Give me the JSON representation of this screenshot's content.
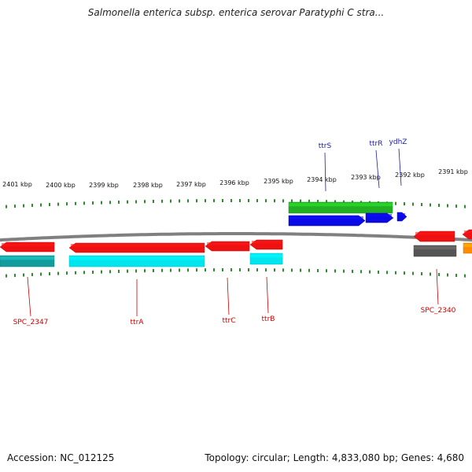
{
  "title": "Salmonella enterica subsp. enterica serovar Paratyphi C stra...",
  "accession_text": "Accession: NC_012125",
  "summary_text": "Topology: circular; Length: 4,833,080 bp; Genes: 4,680",
  "colors": {
    "backbone": "#808080",
    "tick": "#2e8b2e",
    "forward_label": "#1a1aa8",
    "reverse_label": "#cc0000",
    "red": "#ee1111",
    "cyan": "#00e5ee",
    "teal": "#139c9c",
    "blue": "#0a0ae6",
    "green": "#22b022",
    "gray": "#555555",
    "orange": "#ff8c00"
  },
  "scale": {
    "unit": "kbp",
    "labels": [
      "2401 kbp",
      "2400 kbp",
      "2399 kbp",
      "2398 kbp",
      "2397 kbp",
      "2396 kbp",
      "2395 kbp",
      "2394 kbp",
      "2393 kbp",
      "2392 kbp",
      "2391 kbp"
    ]
  },
  "genes": [
    {
      "name": "SPC_2347",
      "strand": "reverse",
      "color": "red",
      "labeled": true
    },
    {
      "name": "ttrA",
      "strand": "reverse",
      "color": "red",
      "labeled": true
    },
    {
      "name": "ttrC",
      "strand": "reverse",
      "color": "red",
      "labeled": true
    },
    {
      "name": "ttrB",
      "strand": "reverse",
      "color": "red",
      "labeled": true
    },
    {
      "name": "SPC_2340",
      "strand": "reverse",
      "color": "red",
      "labeled": true
    },
    {
      "name": "ttrS",
      "strand": "forward",
      "color": "blue",
      "labeled": true
    },
    {
      "name": "ttrR",
      "strand": "forward",
      "color": "blue",
      "labeled": true
    },
    {
      "name": "ydhZ",
      "strand": "forward",
      "color": "blue",
      "labeled": true
    }
  ],
  "features": [
    {
      "track": "forward-outer",
      "color": "green"
    },
    {
      "track": "reverse-inner",
      "color": "teal"
    },
    {
      "track": "reverse-inner",
      "color": "cyan"
    },
    {
      "track": "reverse-inner",
      "color": "cyan"
    },
    {
      "track": "reverse-inner",
      "color": "gray"
    },
    {
      "track": "reverse-inner",
      "color": "orange"
    }
  ]
}
